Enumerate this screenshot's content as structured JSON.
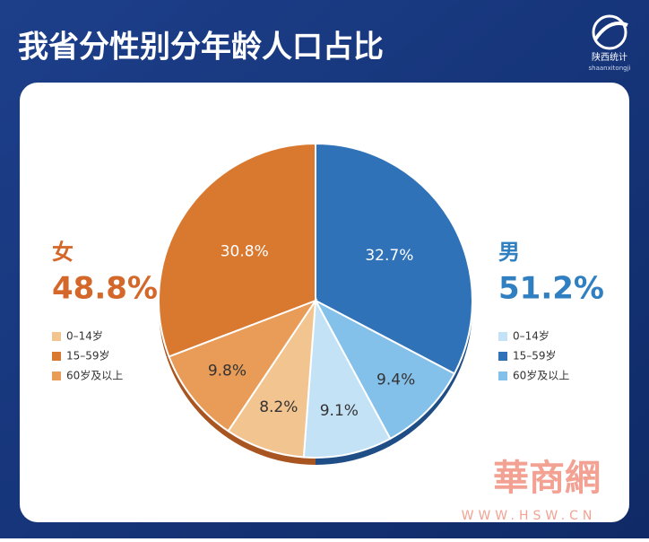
{
  "chart_data": {
    "type": "pie",
    "title": "我省分性别分年龄人口占比",
    "groups": [
      {
        "name": "男",
        "total": 51.2,
        "total_label": "51.2%",
        "color": "#2f7fc1",
        "categories": [
          "0–14岁",
          "15–59岁",
          "60岁及以上"
        ],
        "colors": [
          "#c4e2f6",
          "#2f72b8",
          "#84c1ea"
        ],
        "values": [
          9.1,
          32.7,
          9.4
        ],
        "value_labels": [
          "9.1%",
          "32.7%",
          "9.4%"
        ]
      },
      {
        "name": "女",
        "total": 48.8,
        "total_label": "48.8%",
        "color": "#d3682a",
        "categories": [
          "0–14岁",
          "15–59岁",
          "60岁及以上"
        ],
        "colors": [
          "#f2c490",
          "#d9782f",
          "#e89c58"
        ],
        "values": [
          8.2,
          30.8,
          9.8
        ],
        "value_labels": [
          "8.2%",
          "30.8%",
          "9.8%"
        ]
      }
    ]
  },
  "logo": {
    "name": "陕西统计",
    "pinyin": "shaanxitongji"
  },
  "watermark": {
    "name": "華商網",
    "url": "WWW.HSW.CN"
  }
}
